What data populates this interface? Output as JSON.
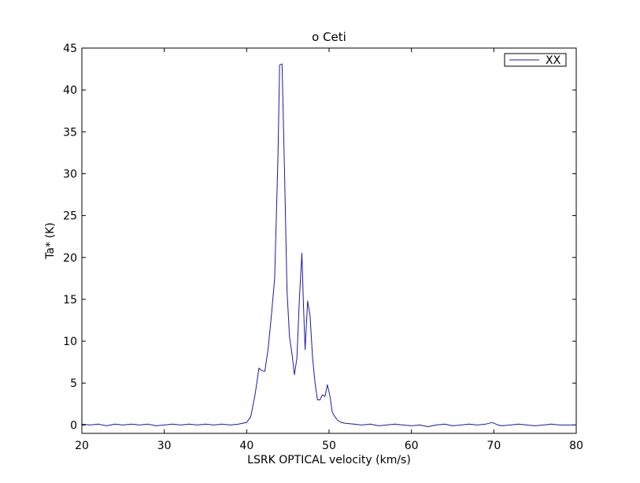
{
  "chart_data": {
    "type": "line",
    "title": "o Ceti",
    "xlabel": "LSRK OPTICAL velocity (km/s)",
    "ylabel": "Ta* (K)",
    "xlim": [
      20,
      80
    ],
    "ylim": [
      -1,
      45
    ],
    "xticks": [
      20,
      30,
      40,
      50,
      60,
      70,
      80
    ],
    "yticks": [
      0,
      5,
      10,
      15,
      20,
      25,
      30,
      35,
      40,
      45
    ],
    "grid": false,
    "legend": {
      "position": "top-right",
      "entries": [
        "XX"
      ]
    },
    "series": [
      {
        "name": "XX",
        "color": "#1a1aa8",
        "x": [
          20,
          21,
          22,
          23,
          24,
          25,
          26,
          27,
          28,
          29,
          30,
          31,
          32,
          33,
          34,
          35,
          36,
          37,
          38,
          39,
          40,
          40.5,
          41,
          41.5,
          41.8,
          42.2,
          42.6,
          43.0,
          43.4,
          43.8,
          44.0,
          44.3,
          44.6,
          44.9,
          45.2,
          45.5,
          45.8,
          46.1,
          46.4,
          46.7,
          46.9,
          47.1,
          47.4,
          47.7,
          48.0,
          48.3,
          48.6,
          48.9,
          49.2,
          49.5,
          49.8,
          50.1,
          50.4,
          50.7,
          51.0,
          51.5,
          52,
          53,
          54,
          55,
          56,
          57,
          58,
          59,
          60,
          61,
          62,
          63,
          64,
          65,
          66,
          67,
          68,
          69,
          69.8,
          70.5,
          71,
          72,
          73,
          74,
          75,
          76,
          77,
          78,
          79,
          80
        ],
        "values": [
          0.1,
          0.0,
          0.1,
          -0.1,
          0.1,
          0.0,
          0.1,
          0.0,
          0.1,
          -0.1,
          0.0,
          0.1,
          0.0,
          0.1,
          0.0,
          0.1,
          0.0,
          0.1,
          0.0,
          0.1,
          0.3,
          1.0,
          3.5,
          6.8,
          6.5,
          6.4,
          9.0,
          13.0,
          17.5,
          32.0,
          43.0,
          43.1,
          30.0,
          16.0,
          10.5,
          8.5,
          6.0,
          8.0,
          15.0,
          20.5,
          14.0,
          9.0,
          14.8,
          13.0,
          8.0,
          5.0,
          3.0,
          3.0,
          3.6,
          3.4,
          4.8,
          3.5,
          1.5,
          1.0,
          0.6,
          0.3,
          0.2,
          0.1,
          0.0,
          0.1,
          -0.1,
          0.0,
          0.1,
          0.0,
          -0.1,
          0.0,
          -0.2,
          0.0,
          0.1,
          -0.1,
          0.0,
          0.1,
          0.0,
          0.1,
          0.3,
          0.0,
          -0.1,
          0.0,
          0.1,
          0.0,
          -0.1,
          0.0,
          0.1,
          0.0,
          0.0,
          0.0
        ]
      }
    ]
  }
}
